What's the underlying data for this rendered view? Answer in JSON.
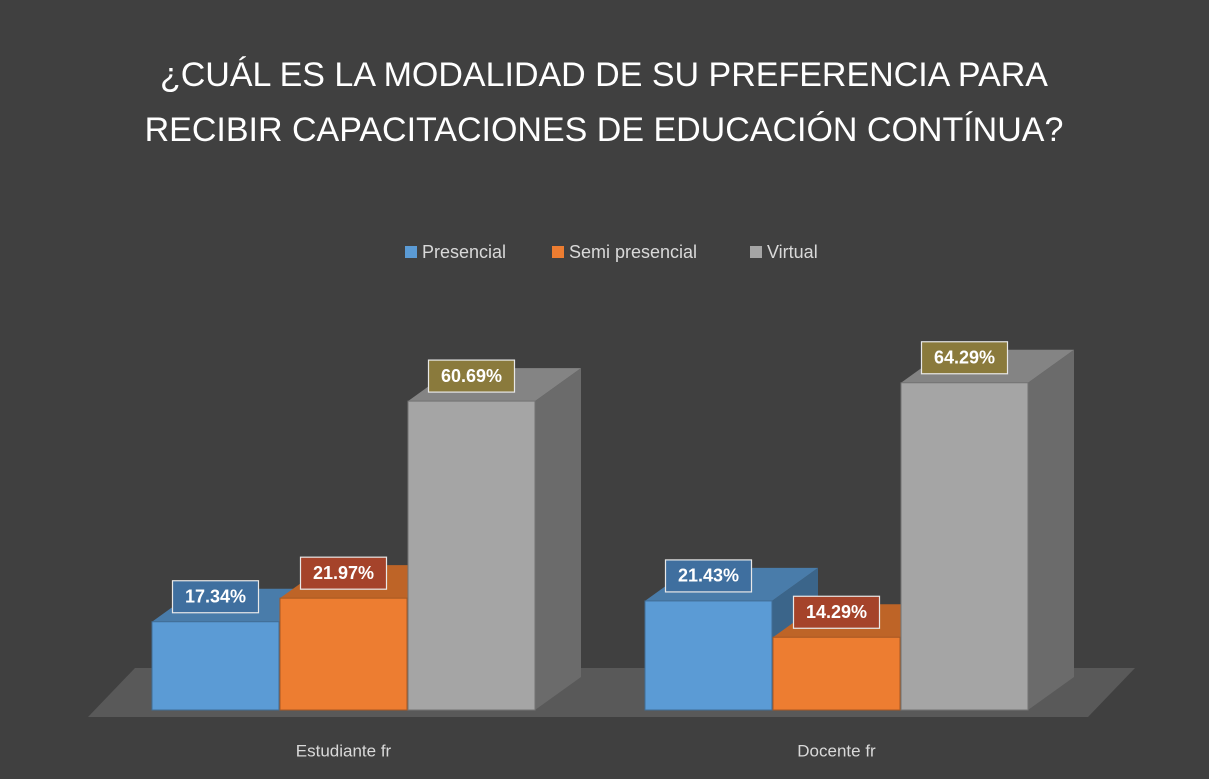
{
  "chart_data": {
    "type": "bar3d",
    "title": "¿CUÁL ES LA MODALIDAD DE SU PREFERENCIA PARA RECIBIR CAPACITACIONES DE EDUCACIÓN CONTÍNUA?",
    "categories": [
      "Estudiante fr",
      "Docente fr"
    ],
    "legend": "top",
    "series": [
      {
        "name": "Presencial",
        "color": "#5b9bd5",
        "label_color": "#3f6f9f",
        "values": [
          17.34,
          21.43
        ],
        "value_labels": [
          "17.34%",
          "21.43%"
        ]
      },
      {
        "name": "Semi presencial",
        "color": "#ed7d31",
        "label_color": "#a5432a",
        "values": [
          21.97,
          14.29
        ],
        "value_labels": [
          "21.97%",
          "14.29%"
        ]
      },
      {
        "name": "Virtual",
        "color": "#a5a5a5",
        "label_color": "#8a7a3c",
        "values": [
          60.69,
          64.29
        ],
        "value_labels": [
          "60.69%",
          "64.29%"
        ]
      }
    ]
  }
}
